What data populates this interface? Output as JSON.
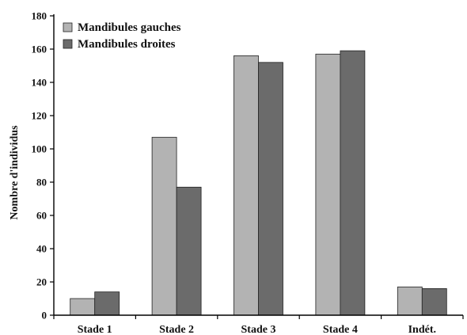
{
  "chart_data": {
    "type": "bar",
    "categories": [
      "Stade 1",
      "Stade 2",
      "Stade 3",
      "Stade 4",
      "Indét."
    ],
    "series": [
      {
        "name": "Mandibules gauches",
        "color": "#b3b3b3",
        "values": [
          10,
          107,
          156,
          157,
          17
        ]
      },
      {
        "name": "Mandibules droites",
        "color": "#6b6b6b",
        "values": [
          14,
          77,
          152,
          159,
          16
        ]
      }
    ],
    "title": "",
    "xlabel": "",
    "ylabel": "Nombre d'individus",
    "ylim": [
      0,
      180
    ],
    "yticks": [
      0,
      20,
      40,
      60,
      80,
      100,
      120,
      140,
      160,
      180
    ],
    "grid": false,
    "legend": "top-left"
  }
}
